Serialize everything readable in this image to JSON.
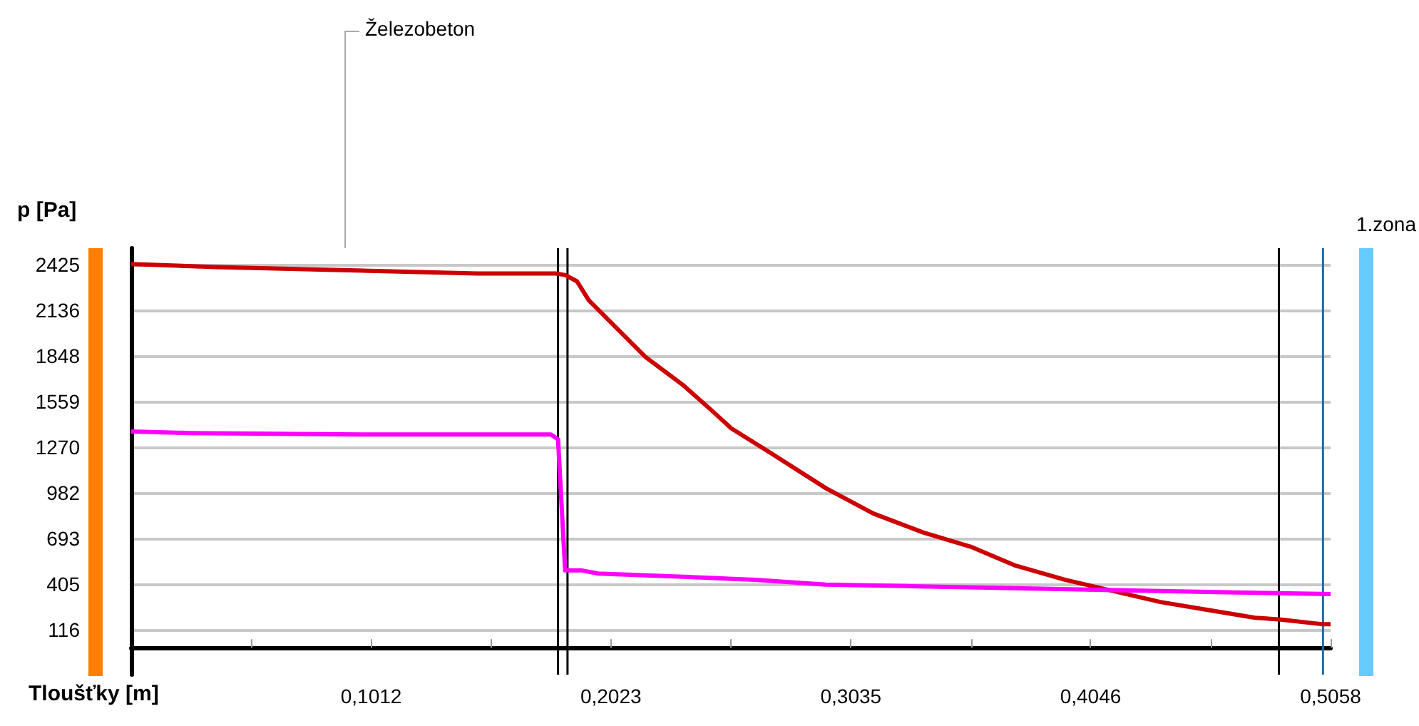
{
  "chart_data": {
    "type": "line",
    "xlabel": "Tloušťky [m]",
    "ylabel": "p [Pa]",
    "xlim": [
      0,
      0.5058
    ],
    "ylim": [
      -170,
      2530
    ],
    "xticks": [
      {
        "value": 0.0506,
        "label": null
      },
      {
        "value": 0.1012,
        "label": "0,1012"
      },
      {
        "value": 0.1518,
        "label": null
      },
      {
        "value": 0.2023,
        "label": "0,2023"
      },
      {
        "value": 0.2529,
        "label": null
      },
      {
        "value": 0.3035,
        "label": "0,3035"
      },
      {
        "value": 0.3541,
        "label": null
      },
      {
        "value": 0.4046,
        "label": "0,4046"
      },
      {
        "value": 0.4552,
        "label": null
      },
      {
        "value": 0.5058,
        "label": "0,5058"
      }
    ],
    "yticks": [
      116,
      405,
      693,
      982,
      1270,
      1559,
      1848,
      2136,
      2425
    ],
    "grid": "y",
    "marker": "none",
    "line_style": "solid",
    "series": [
      {
        "color": "#cc0000",
        "x": [
          0,
          0.036,
          0.092,
          0.146,
          0.179,
          0.183,
          0.188,
          0.193,
          0.217,
          0.233,
          0.245,
          0.253,
          0.269,
          0.293,
          0.313,
          0.334,
          0.354,
          0.373,
          0.394,
          0.414,
          0.434,
          0.454,
          0.474,
          0.484,
          0.502,
          0.5058
        ],
        "values": [
          2430,
          2410,
          2390,
          2370,
          2370,
          2360,
          2320,
          2200,
          1840,
          1660,
          1500,
          1390,
          1240,
          1010,
          850,
          730,
          640,
          520,
          430,
          360,
          290,
          240,
          190,
          180,
          150,
          150
        ]
      },
      {
        "color": "#ff00ff",
        "x": [
          0,
          0.024,
          0.103,
          0.177,
          0.18,
          0.183,
          0.19,
          0.197,
          0.233,
          0.263,
          0.293,
          0.329,
          0.365,
          0.43,
          0.466,
          0.5058
        ],
        "values": [
          1370,
          1360,
          1350,
          1350,
          1320,
          490,
          490,
          470,
          450,
          430,
          400,
          390,
          380,
          360,
          350,
          340
        ]
      }
    ],
    "ref_lines": [
      {
        "axis": "x",
        "value": 0.18,
        "color": "#000000"
      },
      {
        "axis": "x",
        "value": 0.184,
        "color": "#000000"
      },
      {
        "axis": "x",
        "value": 0.484,
        "color": "#000000"
      },
      {
        "axis": "x",
        "value": 0.5026,
        "color": "#1f6aa5"
      }
    ],
    "annotations": [
      "Železobeton",
      "1.zona"
    ]
  }
}
